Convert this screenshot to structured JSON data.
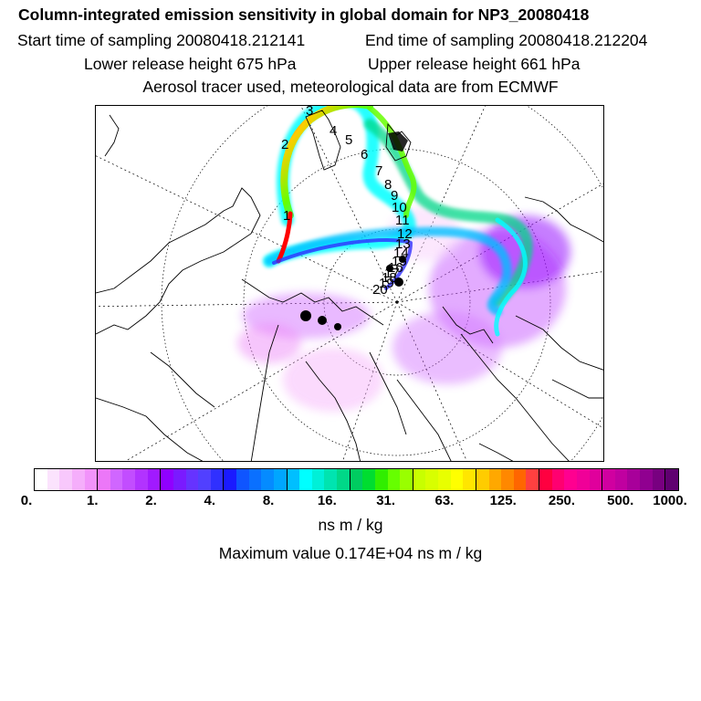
{
  "header": {
    "title": "Column-integrated emission sensitivity in global domain for NP3_20080418",
    "start_label": "Start time of sampling 20080418.212141",
    "end_label": "End time of sampling 20080418.212204",
    "lower_label": "Lower release height  675 hPa",
    "upper_label": "Upper release height  661 hPa",
    "aerosol_label": "Aerosol tracer used, meteorological data are from ECMWF"
  },
  "map": {
    "track_labels": [
      "1",
      "2",
      "3",
      "4",
      "5",
      "6",
      "7",
      "8",
      "9",
      "10",
      "11",
      "12",
      "13",
      "14",
      "15",
      "16",
      "17",
      "18",
      "19",
      "20"
    ]
  },
  "colorbar": {
    "colors": [
      "#ffffff",
      "#fbe3fd",
      "#f8c8fc",
      "#f5aefb",
      "#f193fa",
      "#ec77f8",
      "#d066ff",
      "#c24dff",
      "#b233ff",
      "#a11aff",
      "#9000ff",
      "#7a1aff",
      "#6633ff",
      "#5140ff",
      "#3030ff",
      "#1a1aff",
      "#0f55ff",
      "#0a70ff",
      "#058bff",
      "#00a6ff",
      "#00bfff",
      "#00ffff",
      "#00f0d8",
      "#00e4b0",
      "#00d888",
      "#00cc60",
      "#00dd30",
      "#30ee00",
      "#66ff00",
      "#99ff00",
      "#c8ff00",
      "#d8ff00",
      "#e8ff00",
      "#ffff00",
      "#ffe600",
      "#ffcc00",
      "#ffa800",
      "#ff8800",
      "#ff6600",
      "#ff4040",
      "#ff0040",
      "#ff0070",
      "#ff0090",
      "#f00098",
      "#e0009c",
      "#d000a0",
      "#c000a0",
      "#a8009a",
      "#900090",
      "#780080",
      "#600070"
    ],
    "tick_labels": [
      "0.",
      "1.",
      "2.",
      "4.",
      "8.",
      "16.",
      "31.",
      "63.",
      "125.",
      "250.",
      "500.",
      "1000."
    ]
  },
  "footer": {
    "units": "ns m / kg",
    "max_value": "Maximum value  0.174E+04 ns m / kg"
  }
}
